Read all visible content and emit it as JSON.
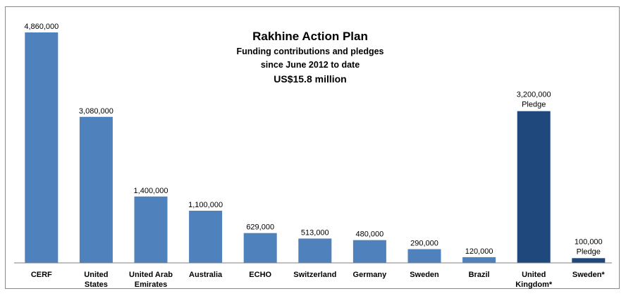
{
  "chart_data": {
    "type": "bar",
    "title": "Rakhine Action Plan",
    "subtitle_lines": [
      "Funding contributions and pledges",
      "since June 2012 to date",
      "US$15.8 million"
    ],
    "categories": [
      [
        "CERF"
      ],
      [
        "United",
        "States"
      ],
      [
        "United Arab",
        "Emirates"
      ],
      [
        "Australia"
      ],
      [
        "ECHO"
      ],
      [
        "Switzerland"
      ],
      [
        "Germany"
      ],
      [
        "Sweden"
      ],
      [
        "Brazil"
      ],
      [
        "United",
        "Kingdom*"
      ],
      [
        "Sweden*"
      ]
    ],
    "values": [
      4860000,
      3080000,
      1400000,
      1100000,
      629000,
      513000,
      480000,
      290000,
      120000,
      3200000,
      100000
    ],
    "value_labels": [
      "4,860,000",
      "3,080,000",
      "1,400,000",
      "1,100,000",
      "629,000",
      "513,000",
      "480,000",
      "290,000",
      "120,000",
      "3,200,000",
      "100,000"
    ],
    "pledge_label": "Pledge",
    "kind": [
      "contribution",
      "contribution",
      "contribution",
      "contribution",
      "contribution",
      "contribution",
      "contribution",
      "contribution",
      "contribution",
      "pledge",
      "pledge"
    ],
    "colors": {
      "contribution": "#4f81bd",
      "pledge": "#1f497d",
      "axis": "#7f7f7f"
    },
    "ylim": [
      0,
      4860000
    ],
    "grid": false,
    "legend": "none"
  }
}
